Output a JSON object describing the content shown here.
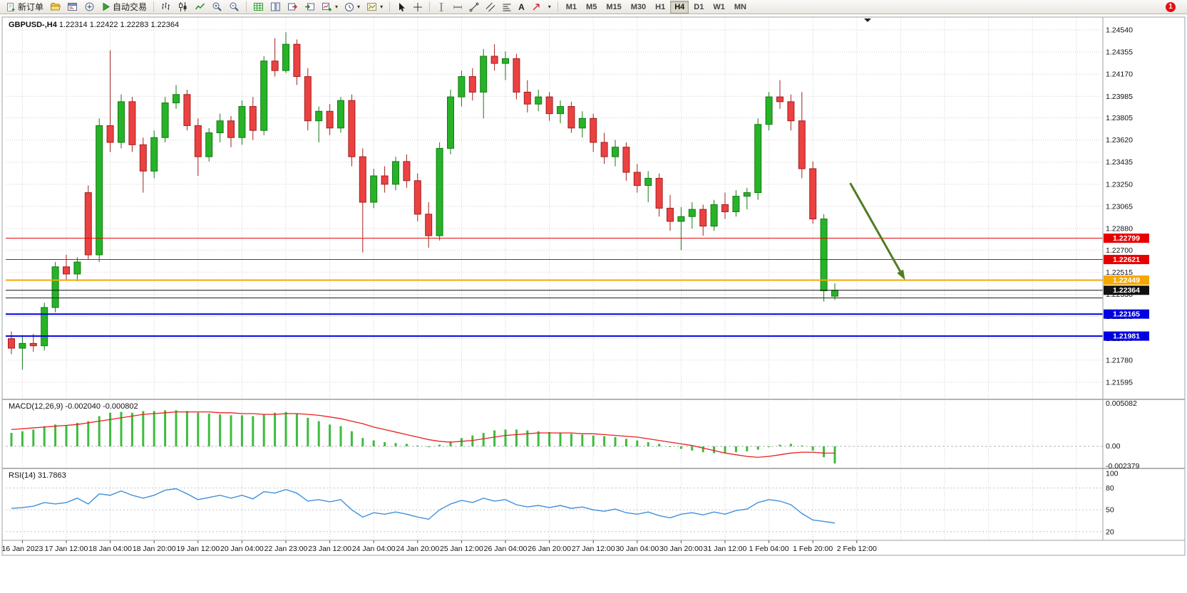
{
  "icons": {
    "caret": "▾",
    "text_tool": "A"
  },
  "toolbar": {
    "new_order": "新订单",
    "autotrading": "自动交易",
    "timeframes": [
      "M1",
      "M5",
      "M15",
      "M30",
      "H1",
      "H4",
      "D1",
      "W1",
      "MN"
    ],
    "active_timeframe": "H4",
    "notification_count": "1"
  },
  "chart": {
    "symbol_title": "GBPUSD-,H4",
    "ohlc_text": "1.22314 1.22422 1.22283 1.22364",
    "macd_label": "MACD(12,26,9) -0.002040 -0.000802",
    "rsi_label": "RSI(14) 31.7863"
  },
  "chart_data": {
    "type": "candlestick",
    "symbol": "GBPUSD-",
    "timeframe": "H4",
    "ohlc_current": [
      1.22314,
      1.22422,
      1.22283,
      1.22364
    ],
    "price_axis": {
      "min": 1.21595,
      "max": 1.2454,
      "ticks": [
        "1.24540",
        "1.24355",
        "1.24170",
        "1.23985",
        "1.23805",
        "1.23620",
        "1.23435",
        "1.23250",
        "1.23065",
        "1.22880",
        "1.22700",
        "1.22515",
        "1.22330",
        "1.22145",
        "1.21960",
        "1.21780",
        "1.21595"
      ]
    },
    "time_labels": [
      "16 Jan 2023",
      "17 Jan 12:00",
      "18 Jan 04:00",
      "18 Jan 20:00",
      "19 Jan 12:00",
      "20 Jan 04:00",
      "22 Jan 23:00",
      "23 Jan 12:00",
      "24 Jan 04:00",
      "24 Jan 20:00",
      "25 Jan 12:00",
      "26 Jan 04:00",
      "26 Jan 20:00",
      "27 Jan 12:00",
      "30 Jan 04:00",
      "30 Jan 20:00",
      "31 Jan 12:00",
      "1 Feb 04:00",
      "1 Feb 20:00",
      "2 Feb 12:00"
    ],
    "candles": [
      [
        1.2196,
        1.2202,
        1.2183,
        1.2188
      ],
      [
        1.2188,
        1.2199,
        1.217,
        1.2192
      ],
      [
        1.2192,
        1.22,
        1.2185,
        1.219
      ],
      [
        1.219,
        1.2226,
        1.2186,
        1.2222
      ],
      [
        1.2222,
        1.226,
        1.2218,
        1.2256
      ],
      [
        1.2256,
        1.2266,
        1.2245,
        1.225
      ],
      [
        1.225,
        1.2264,
        1.2244,
        1.226
      ],
      [
        1.2318,
        1.2324,
        1.2262,
        1.2266
      ],
      [
        1.2266,
        1.238,
        1.226,
        1.2374
      ],
      [
        1.2374,
        1.2437,
        1.2352,
        1.236
      ],
      [
        1.236,
        1.24,
        1.2355,
        1.2394
      ],
      [
        1.2394,
        1.2398,
        1.2352,
        1.2358
      ],
      [
        1.2358,
        1.2364,
        1.2318,
        1.2336
      ],
      [
        1.2336,
        1.237,
        1.233,
        1.2364
      ],
      [
        1.2364,
        1.2398,
        1.236,
        1.2393
      ],
      [
        1.2393,
        1.2408,
        1.2388,
        1.24
      ],
      [
        1.24,
        1.2404,
        1.237,
        1.2374
      ],
      [
        1.2374,
        1.238,
        1.2332,
        1.2348
      ],
      [
        1.2348,
        1.2372,
        1.2344,
        1.2368
      ],
      [
        1.2368,
        1.2384,
        1.236,
        1.2378
      ],
      [
        1.2378,
        1.2382,
        1.2356,
        1.2364
      ],
      [
        1.2364,
        1.2395,
        1.2358,
        1.239
      ],
      [
        1.239,
        1.2398,
        1.2362,
        1.237
      ],
      [
        1.237,
        1.2432,
        1.2366,
        1.2428
      ],
      [
        1.2428,
        1.2447,
        1.2415,
        1.242
      ],
      [
        1.242,
        1.2452,
        1.2418,
        1.2442
      ],
      [
        1.2442,
        1.2446,
        1.2408,
        1.2415
      ],
      [
        1.2415,
        1.2422,
        1.237,
        1.2378
      ],
      [
        1.2378,
        1.239,
        1.236,
        1.2386
      ],
      [
        1.2386,
        1.2392,
        1.2366,
        1.2372
      ],
      [
        1.2372,
        1.2398,
        1.2368,
        1.2395
      ],
      [
        1.2395,
        1.24,
        1.234,
        1.2348
      ],
      [
        1.2348,
        1.2355,
        1.2268,
        1.231
      ],
      [
        1.231,
        1.2338,
        1.2305,
        1.2332
      ],
      [
        1.2332,
        1.234,
        1.2318,
        1.2325
      ],
      [
        1.2325,
        1.2348,
        1.232,
        1.2344
      ],
      [
        1.2344,
        1.235,
        1.2322,
        1.2328
      ],
      [
        1.2328,
        1.2334,
        1.2294,
        1.23
      ],
      [
        1.23,
        1.231,
        1.2272,
        1.2282
      ],
      [
        1.2282,
        1.236,
        1.2278,
        1.2355
      ],
      [
        1.2355,
        1.2404,
        1.235,
        1.2398
      ],
      [
        1.2398,
        1.242,
        1.239,
        1.2415
      ],
      [
        1.2415,
        1.2422,
        1.2395,
        1.2402
      ],
      [
        1.2402,
        1.2438,
        1.238,
        1.2432
      ],
      [
        1.2432,
        1.2442,
        1.242,
        1.2426
      ],
      [
        1.2426,
        1.2436,
        1.2412,
        1.243
      ],
      [
        1.243,
        1.2434,
        1.2396,
        1.2402
      ],
      [
        1.2402,
        1.2412,
        1.2385,
        1.2392
      ],
      [
        1.2392,
        1.2404,
        1.2386,
        1.2398
      ],
      [
        1.2398,
        1.2402,
        1.2378,
        1.2384
      ],
      [
        1.2384,
        1.2395,
        1.2376,
        1.239
      ],
      [
        1.239,
        1.2394,
        1.2368,
        1.2372
      ],
      [
        1.2372,
        1.2386,
        1.2364,
        1.238
      ],
      [
        1.238,
        1.2384,
        1.2352,
        1.236
      ],
      [
        1.236,
        1.2368,
        1.2342,
        1.2348
      ],
      [
        1.2348,
        1.2362,
        1.234,
        1.2356
      ],
      [
        1.2356,
        1.236,
        1.2328,
        1.2335
      ],
      [
        1.2335,
        1.2342,
        1.2318,
        1.2324
      ],
      [
        1.2324,
        1.2336,
        1.231,
        1.233
      ],
      [
        1.233,
        1.2334,
        1.2298,
        1.2305
      ],
      [
        1.2305,
        1.2316,
        1.2286,
        1.2294
      ],
      [
        1.2294,
        1.2306,
        1.227,
        1.2298
      ],
      [
        1.2298,
        1.231,
        1.2288,
        1.2304
      ],
      [
        1.2304,
        1.2308,
        1.2282,
        1.229
      ],
      [
        1.229,
        1.2312,
        1.2286,
        1.2308
      ],
      [
        1.2308,
        1.2318,
        1.2296,
        1.2302
      ],
      [
        1.2302,
        1.232,
        1.2298,
        1.2315
      ],
      [
        1.2315,
        1.2322,
        1.2304,
        1.2318
      ],
      [
        1.2318,
        1.238,
        1.2312,
        1.2375
      ],
      [
        1.2375,
        1.2402,
        1.237,
        1.2398
      ],
      [
        1.2398,
        1.2412,
        1.2388,
        1.2394
      ],
      [
        1.2394,
        1.24,
        1.237,
        1.2378
      ],
      [
        1.2378,
        1.2402,
        1.233,
        1.2338
      ],
      [
        1.2338,
        1.2344,
        1.2292,
        1.2296
      ],
      [
        1.2236,
        1.23,
        1.2227,
        1.2296
      ],
      [
        1.22314,
        1.22422,
        1.22283,
        1.22364
      ]
    ],
    "hlines": [
      {
        "price": 1.22799,
        "color": "#e80000",
        "width": 1,
        "label": "1.22799"
      },
      {
        "price": 1.22621,
        "color": "#e80000",
        "width": 1,
        "label": "1.22621"
      },
      {
        "price": 1.22449,
        "color": "#f5a800",
        "width": 2,
        "label": "1.22449"
      },
      {
        "price": 1.223,
        "color": "#222222",
        "width": 1,
        "label": ""
      },
      {
        "price": 1.22165,
        "color": "#0000e0",
        "width": 2,
        "label": "1.22165"
      },
      {
        "price": 1.21981,
        "color": "#0000e0",
        "width": 2,
        "label": "1.21981"
      }
    ],
    "current_price": {
      "value": 1.22364,
      "label": "1.22364",
      "color": "#111111"
    },
    "arrow_annotation": {
      "x1_candle": 76.4,
      "price1": 1.2326,
      "x2_candle": 81.4,
      "price2": 1.2245,
      "color": "#4f7d20"
    },
    "macd": {
      "params": "12,26,9",
      "main_value": -0.00204,
      "signal_value": -0.000802,
      "ticks": [
        {
          "v": 0.005082,
          "label": "0.005082"
        },
        {
          "v": 0,
          "label": "0.00"
        },
        {
          "v": -0.002379,
          "label": "-0.002379"
        }
      ],
      "histogram": [
        0.0016,
        0.0018,
        0.002,
        0.0024,
        0.0026,
        0.0025,
        0.0028,
        0.003,
        0.0036,
        0.004,
        0.0041,
        0.004,
        0.0042,
        0.0042,
        0.0043,
        0.0043,
        0.0042,
        0.004,
        0.0039,
        0.0038,
        0.0037,
        0.0037,
        0.0036,
        0.0038,
        0.004,
        0.0041,
        0.0039,
        0.0034,
        0.003,
        0.0026,
        0.0024,
        0.0018,
        0.001,
        0.0007,
        0.0005,
        0.0004,
        0.0003,
        0.0001,
        -0.0001,
        0.0002,
        0.0006,
        0.001,
        0.0013,
        0.0016,
        0.0019,
        0.002,
        0.002,
        0.0019,
        0.0018,
        0.0017,
        0.0016,
        0.0015,
        0.0014,
        0.0013,
        0.0012,
        0.0011,
        0.0009,
        0.0007,
        0.0005,
        0.0003,
        0.0,
        -0.0003,
        -0.0005,
        -0.0007,
        -0.0008,
        -0.0008,
        -0.0007,
        -0.0006,
        -0.0004,
        -0.0001,
        0.0002,
        0.0003,
        0.0001,
        -0.0005,
        -0.0013,
        -0.00204
      ],
      "signal": [
        0.002,
        0.0021,
        0.0022,
        0.0023,
        0.0024,
        0.0025,
        0.0026,
        0.0028,
        0.003,
        0.0032,
        0.0034,
        0.0036,
        0.0038,
        0.0039,
        0.004,
        0.0041,
        0.0041,
        0.0041,
        0.0041,
        0.004,
        0.004,
        0.0039,
        0.0039,
        0.0038,
        0.0038,
        0.0039,
        0.0039,
        0.0038,
        0.0037,
        0.0035,
        0.0033,
        0.003,
        0.0027,
        0.0023,
        0.002,
        0.0017,
        0.0014,
        0.0011,
        0.0008,
        0.0006,
        0.0005,
        0.0006,
        0.0007,
        0.0009,
        0.0011,
        0.0013,
        0.0014,
        0.0015,
        0.0016,
        0.0016,
        0.0016,
        0.0016,
        0.0015,
        0.0015,
        0.0014,
        0.0013,
        0.0012,
        0.0011,
        0.0009,
        0.0007,
        0.0005,
        0.0003,
        0.0001,
        -0.0002,
        -0.0005,
        -0.0008,
        -0.001,
        -0.0012,
        -0.0013,
        -0.0012,
        -0.001,
        -0.0008,
        -0.0007,
        -0.0007,
        -0.0008,
        -0.000802
      ]
    },
    "rsi": {
      "period": 14,
      "value": 31.7863,
      "range": [
        10,
        104
      ],
      "levels": [
        80,
        50,
        20
      ],
      "ticks": [
        {
          "v": 100,
          "label": "100"
        },
        {
          "v": 80,
          "label": "80"
        },
        {
          "v": 50,
          "label": "50"
        },
        {
          "v": 20,
          "label": "20"
        }
      ],
      "values": [
        52,
        53,
        55,
        60,
        58,
        60,
        66,
        58,
        72,
        70,
        76,
        70,
        66,
        70,
        77,
        79,
        72,
        64,
        67,
        70,
        66,
        70,
        65,
        75,
        73,
        78,
        73,
        62,
        64,
        61,
        64,
        50,
        40,
        46,
        44,
        47,
        44,
        40,
        37,
        50,
        58,
        63,
        60,
        66,
        62,
        64,
        57,
        54,
        56,
        53,
        56,
        52,
        54,
        50,
        48,
        51,
        46,
        44,
        47,
        42,
        39,
        44,
        46,
        43,
        47,
        44,
        49,
        51,
        60,
        64,
        62,
        57,
        45,
        36,
        34,
        31.7863
      ]
    },
    "colors": {
      "up": "#27b327",
      "up_border": "#157a15",
      "down": "#ec4141",
      "down_border": "#a32020",
      "grid": "#cfcfcf",
      "macd_hist": "#3dbc3d",
      "macd_signal": "#e82020",
      "rsi": "#3f8fdc",
      "background": "#ffffff"
    }
  }
}
